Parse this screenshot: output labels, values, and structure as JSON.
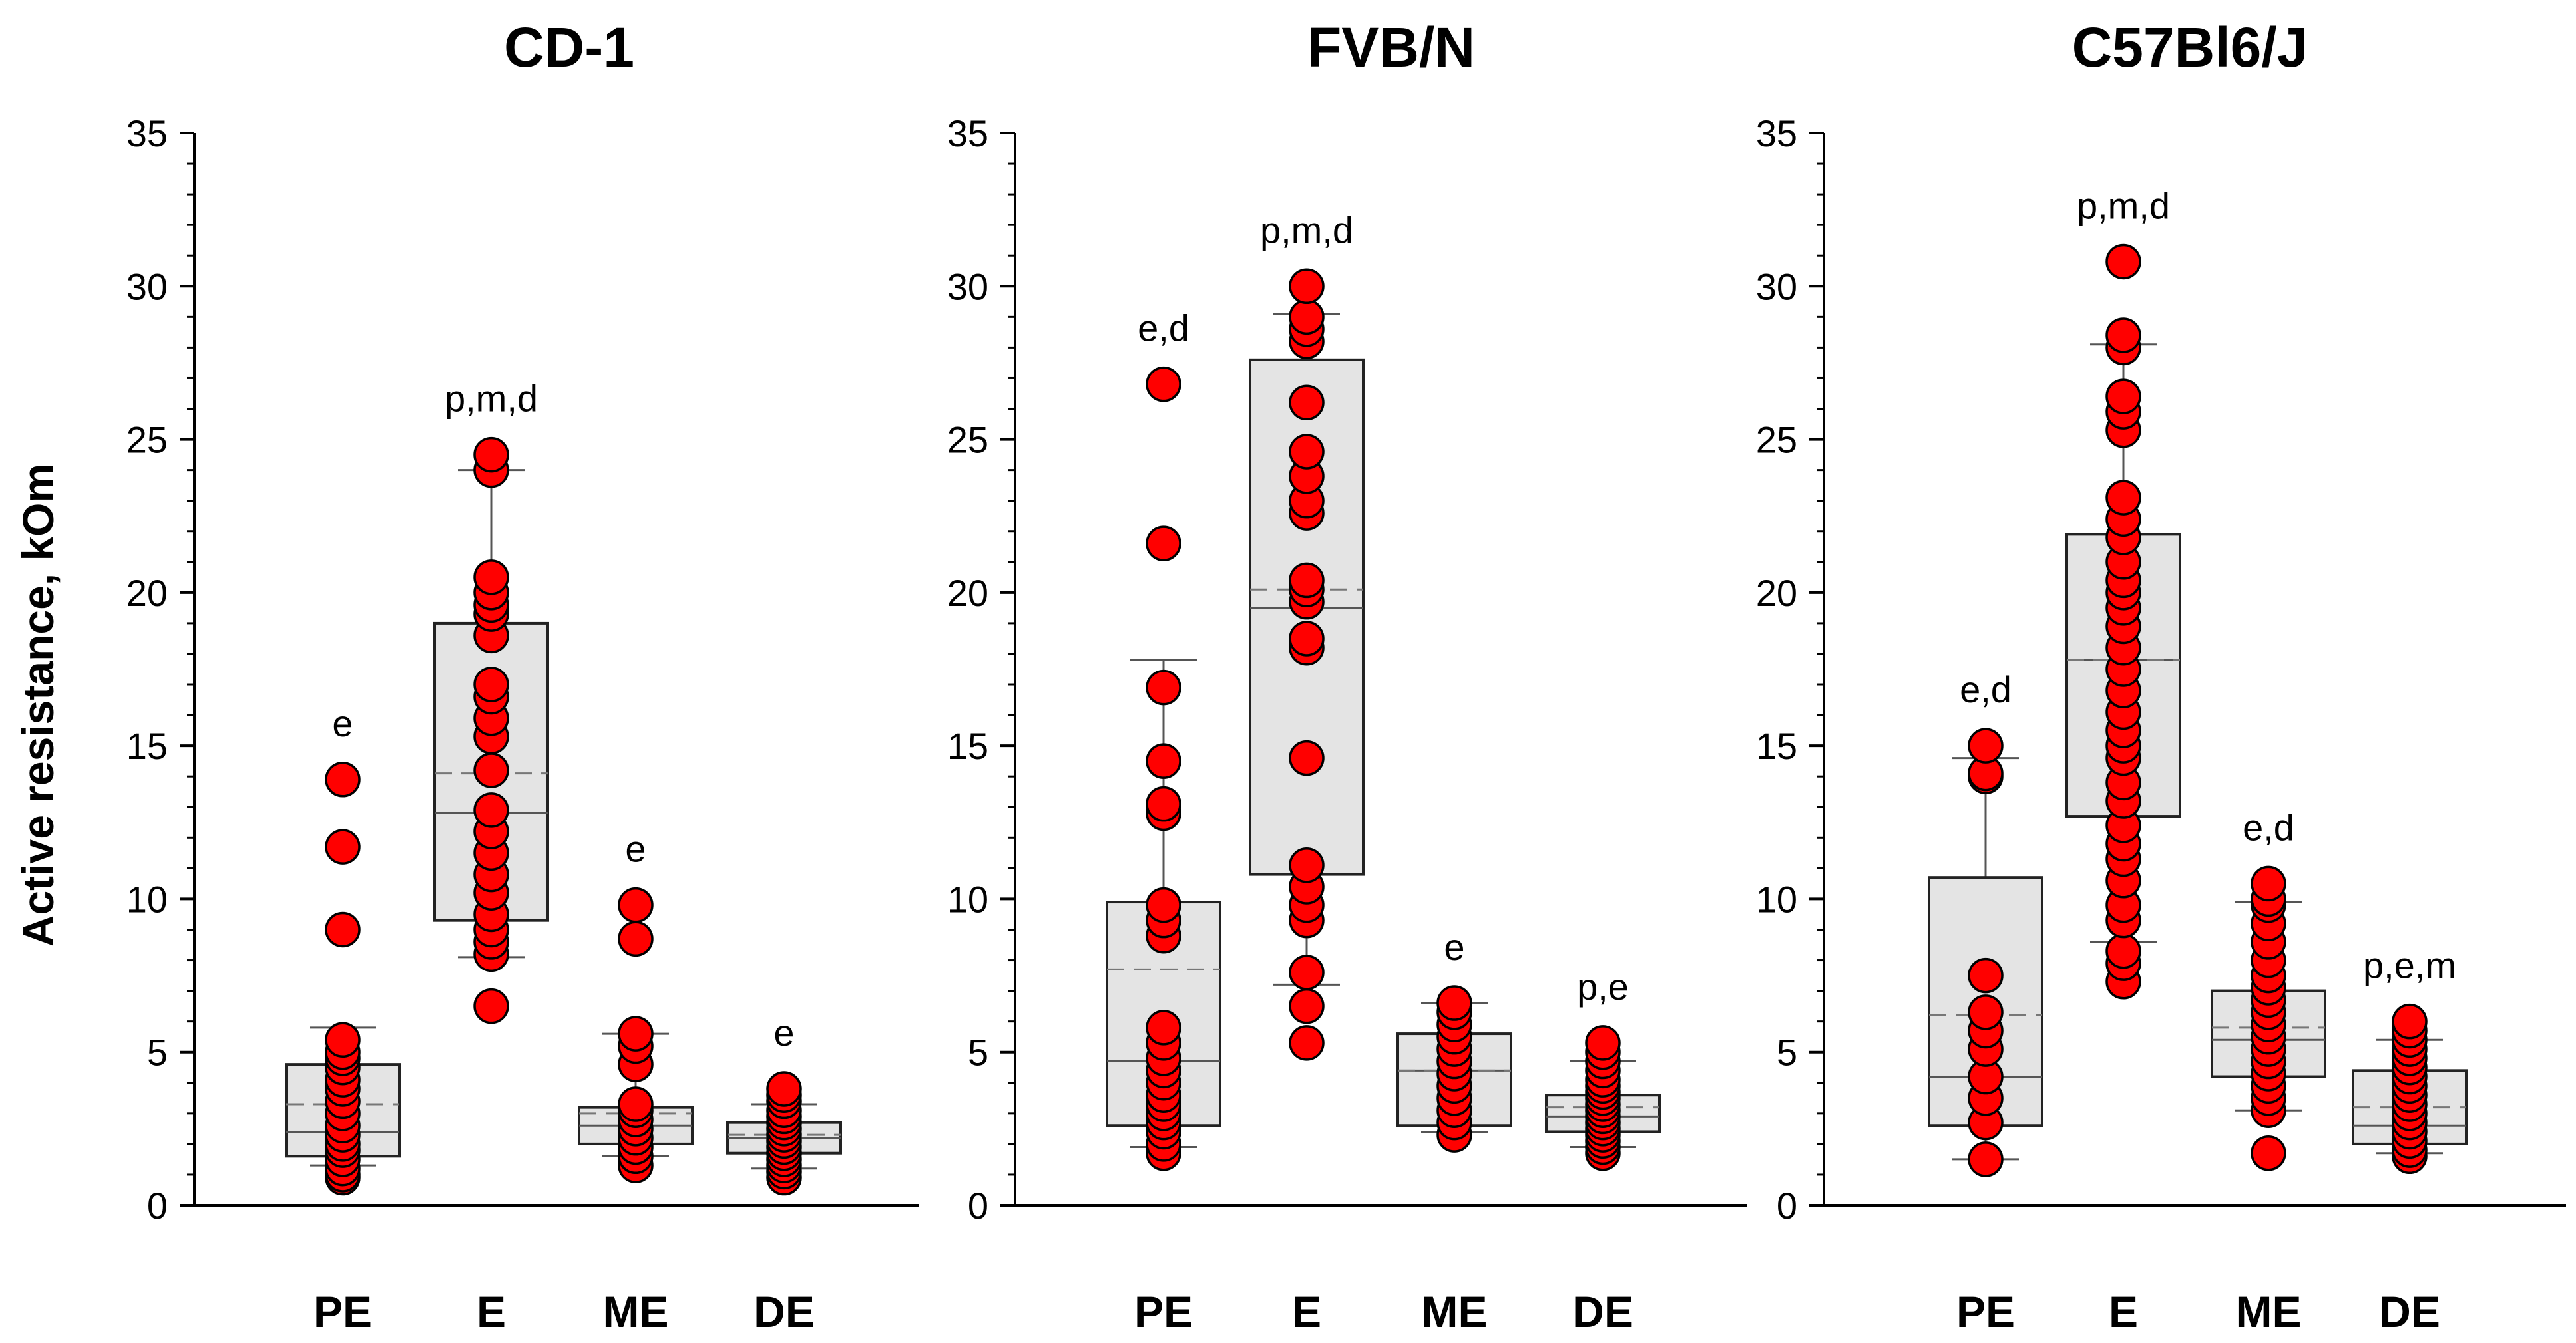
{
  "ylabel": "Active resistance, kOm",
  "colors": {
    "point": "#ff0000",
    "box": "#e4e4e4",
    "stroke": "#222222"
  },
  "chart_data": [
    {
      "type": "box-scatter",
      "title": "CD-1",
      "ylabel": "Active resistance, kOm",
      "ylim": [
        0,
        35
      ],
      "yticks": [
        "0",
        "5",
        "10",
        "15",
        "20",
        "25",
        "30",
        "35"
      ],
      "categories": [
        "PE",
        "E",
        "ME",
        "DE"
      ],
      "groups": [
        {
          "name": "PE",
          "label": "e",
          "q1": 1.6,
          "median": 2.4,
          "mean": 3.3,
          "q3": 4.6,
          "whisker_low": 1.3,
          "whisker_high": 5.8,
          "points": [
            0.9,
            1.0,
            1.2,
            1.5,
            1.8,
            2.0,
            2.3,
            2.6,
            3.0,
            3.4,
            3.8,
            4.1,
            4.5,
            4.8,
            5.0,
            5.4,
            9.0,
            11.7,
            13.9
          ]
        },
        {
          "name": "E",
          "label": "p,m,d",
          "q1": 9.3,
          "median": 12.8,
          "mean": 14.1,
          "q3": 19.0,
          "whisker_low": 8.1,
          "whisker_high": 24.0,
          "points": [
            6.5,
            8.2,
            8.6,
            9.0,
            9.5,
            10.2,
            10.8,
            11.5,
            12.2,
            12.9,
            14.2,
            15.3,
            15.9,
            16.6,
            17.0,
            18.6,
            19.3,
            19.6,
            20.0,
            20.5,
            24.0,
            24.5
          ]
        },
        {
          "name": "ME",
          "label": "e",
          "q1": 2.0,
          "median": 2.6,
          "mean": 3.0,
          "q3": 3.2,
          "whisker_low": 1.6,
          "whisker_high": 5.6,
          "points": [
            1.3,
            1.6,
            1.9,
            2.2,
            2.5,
            2.8,
            3.1,
            3.3,
            4.6,
            5.2,
            5.6,
            8.7,
            9.8
          ]
        },
        {
          "name": "DE",
          "label": "e",
          "q1": 1.7,
          "median": 2.2,
          "mean": 2.3,
          "q3": 2.7,
          "whisker_low": 1.2,
          "whisker_high": 3.3,
          "points": [
            0.9,
            1.1,
            1.3,
            1.5,
            1.7,
            1.9,
            2.1,
            2.3,
            2.5,
            2.7,
            2.9,
            3.1,
            3.4,
            3.6,
            3.8
          ]
        }
      ]
    },
    {
      "type": "box-scatter",
      "title": "FVB/N",
      "ylabel": "",
      "ylim": [
        0,
        35
      ],
      "yticks": [
        "0",
        "5",
        "10",
        "15",
        "20",
        "25",
        "30",
        "35"
      ],
      "categories": [
        "PE",
        "E",
        "ME",
        "DE"
      ],
      "groups": [
        {
          "name": "PE",
          "label": "e,d",
          "q1": 2.6,
          "median": 4.7,
          "mean": 7.7,
          "q3": 9.9,
          "whisker_low": 1.9,
          "whisker_high": 17.8,
          "points": [
            1.7,
            2.0,
            2.4,
            2.7,
            3.0,
            3.3,
            3.6,
            4.0,
            4.4,
            4.8,
            5.3,
            5.8,
            8.8,
            9.3,
            9.8,
            12.8,
            13.1,
            14.5,
            16.9,
            21.6,
            26.8
          ]
        },
        {
          "name": "E",
          "label": "p,m,d",
          "q1": 10.8,
          "median": 19.5,
          "mean": 20.1,
          "q3": 27.6,
          "whisker_low": 7.2,
          "whisker_high": 29.1,
          "points": [
            5.3,
            6.5,
            7.6,
            9.3,
            9.8,
            10.4,
            11.1,
            14.6,
            18.2,
            18.5,
            19.7,
            20.1,
            20.4,
            22.6,
            23.0,
            23.8,
            24.6,
            26.2,
            28.2,
            28.6,
            29.0,
            30.0
          ]
        },
        {
          "name": "ME",
          "label": "e",
          "q1": 2.6,
          "median": 4.4,
          "mean": 4.4,
          "q3": 5.6,
          "whisker_low": 2.4,
          "whisker_high": 6.6,
          "points": [
            2.3,
            2.7,
            3.1,
            3.5,
            3.9,
            4.3,
            4.7,
            5.1,
            5.5,
            5.9,
            6.3,
            6.6
          ]
        },
        {
          "name": "DE",
          "label": "p,e",
          "q1": 2.4,
          "median": 2.9,
          "mean": 3.2,
          "q3": 3.6,
          "whisker_low": 1.9,
          "whisker_high": 4.7,
          "points": [
            1.7,
            1.9,
            2.1,
            2.3,
            2.5,
            2.7,
            2.9,
            3.1,
            3.3,
            3.5,
            3.7,
            3.9,
            4.1,
            4.4,
            4.7,
            5.0,
            5.3
          ]
        }
      ]
    },
    {
      "type": "box-scatter",
      "title": "C57Bl6/J",
      "ylabel": "",
      "ylim": [
        0,
        35
      ],
      "yticks": [
        "0",
        "5",
        "10",
        "15",
        "20",
        "25",
        "30",
        "35"
      ],
      "categories": [
        "PE",
        "E",
        "ME",
        "DE"
      ],
      "groups": [
        {
          "name": "PE",
          "label": "e,d",
          "q1": 2.6,
          "median": 4.2,
          "mean": 6.2,
          "q3": 10.7,
          "whisker_low": 1.5,
          "whisker_high": 14.6,
          "points": [
            1.5,
            2.7,
            3.5,
            4.2,
            5.1,
            5.7,
            6.3,
            7.5,
            14.0,
            14.1,
            15.0
          ]
        },
        {
          "name": "E",
          "label": "p,m,d",
          "q1": 12.7,
          "median": 17.8,
          "mean": 17.8,
          "q3": 21.9,
          "whisker_low": 8.6,
          "whisker_high": 28.1,
          "points": [
            7.3,
            7.9,
            8.3,
            9.3,
            9.8,
            10.6,
            11.3,
            11.8,
            12.4,
            13.2,
            13.8,
            14.6,
            15.0,
            15.5,
            16.1,
            16.8,
            17.5,
            18.2,
            18.9,
            19.5,
            20.0,
            20.4,
            21.0,
            21.8,
            22.4,
            23.1,
            25.3,
            25.9,
            26.4,
            28.0,
            28.4,
            30.8
          ]
        },
        {
          "name": "ME",
          "label": "e,d",
          "q1": 4.2,
          "median": 5.4,
          "mean": 5.8,
          "q3": 7.0,
          "whisker_low": 3.1,
          "whisker_high": 9.9,
          "points": [
            1.7,
            3.1,
            3.5,
            3.9,
            4.3,
            4.7,
            5.1,
            5.5,
            5.9,
            6.3,
            6.7,
            7.1,
            7.5,
            8.0,
            8.6,
            9.2,
            9.8,
            10.0,
            10.5
          ]
        },
        {
          "name": "DE",
          "label": "p,e,m",
          "q1": 2.0,
          "median": 2.6,
          "mean": 3.2,
          "q3": 4.4,
          "whisker_low": 1.7,
          "whisker_high": 5.4,
          "points": [
            1.6,
            1.8,
            2.1,
            2.4,
            2.7,
            3.0,
            3.3,
            3.6,
            3.9,
            4.2,
            4.5,
            4.8,
            5.1,
            5.4,
            5.7,
            6.0
          ]
        }
      ]
    }
  ]
}
